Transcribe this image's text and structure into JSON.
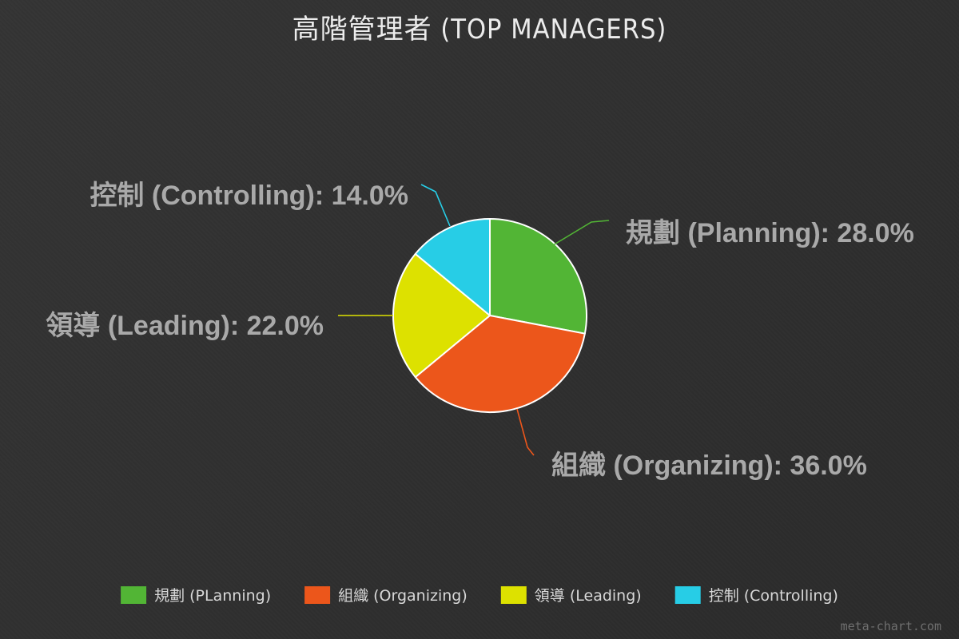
{
  "chart_data": {
    "type": "pie",
    "title": "高階管理者 (TOP MANAGERS)",
    "categories": [
      "規劃 (Planning)",
      "組織 (Organizing)",
      "領導 (Leading)",
      "控制 (Controlling)"
    ],
    "legend_labels": [
      "規劃 (PLanning)",
      "組織 (Organizing)",
      "領導 (Leading)",
      "控制 (Controlling)"
    ],
    "values": [
      28.0,
      36.0,
      22.0,
      14.0
    ],
    "value_labels": [
      "28.0%",
      "36.0%",
      "22.0%",
      "14.0%"
    ],
    "colors": [
      "#52b535",
      "#ec561b",
      "#dde100",
      "#27cde6"
    ],
    "legend_placement": "bottom",
    "grid": false
  },
  "watermark": "meta-chart.com"
}
